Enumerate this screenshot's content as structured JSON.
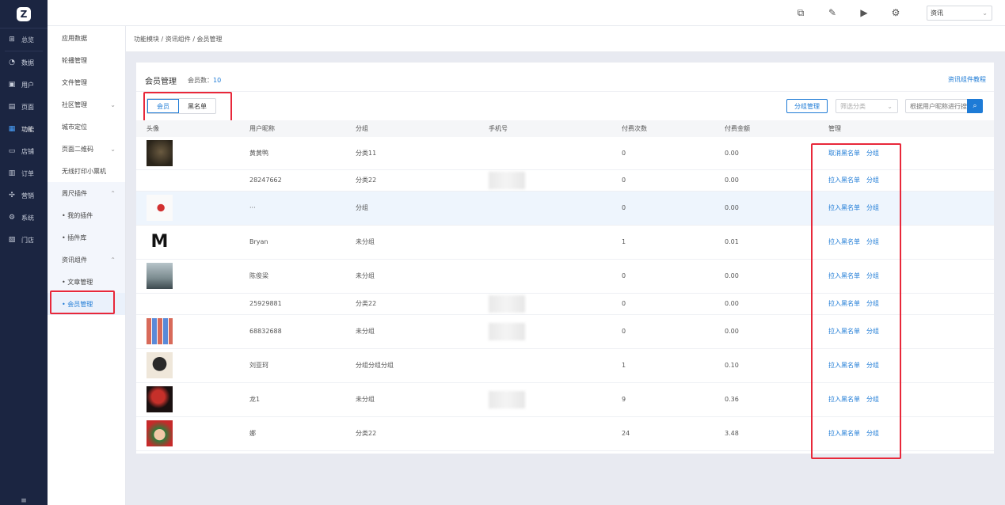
{
  "nav": {
    "logo": "Z",
    "items": [
      {
        "label": "总览",
        "icon": "grid-icon",
        "glyph": "⊞"
      },
      {
        "label": "数据",
        "icon": "pie-chart-icon",
        "glyph": "◔"
      },
      {
        "label": "用户",
        "icon": "user-card-icon",
        "glyph": "▣"
      },
      {
        "label": "页面",
        "icon": "page-icon",
        "glyph": "▤"
      },
      {
        "label": "功能",
        "icon": "function-icon",
        "glyph": "▦"
      },
      {
        "label": "店铺",
        "icon": "store-icon",
        "glyph": "▭"
      },
      {
        "label": "订单",
        "icon": "order-icon",
        "glyph": "▥"
      },
      {
        "label": "营销",
        "icon": "marketing-icon",
        "glyph": "✣"
      },
      {
        "label": "系统",
        "icon": "settings-icon",
        "glyph": "⚙"
      },
      {
        "label": "门店",
        "icon": "shop-icon",
        "glyph": "▧"
      }
    ],
    "bottom_glyph": "≡"
  },
  "sub": {
    "items": [
      {
        "label": "应用数据"
      },
      {
        "label": "轮播管理"
      },
      {
        "label": "文件管理"
      },
      {
        "label": "社区管理",
        "chev": "⌄"
      },
      {
        "label": "城市定位"
      },
      {
        "label": "页面二维码",
        "chev": "⌄"
      },
      {
        "label": "无线打印小票机"
      }
    ],
    "group1": {
      "label": "周尺插件",
      "chev": "⌃",
      "children": [
        "• 我的插件",
        "• 插件库"
      ]
    },
    "group2": {
      "label": "资讯组件",
      "chev": "⌃",
      "children": [
        "• 文章管理",
        "• 会员管理"
      ]
    }
  },
  "topbar": {
    "icons": [
      {
        "name": "external-link-icon",
        "glyph": "⧉"
      },
      {
        "name": "edit-icon",
        "glyph": "✎"
      },
      {
        "name": "play-icon",
        "glyph": "▶"
      },
      {
        "name": "gear-icon",
        "glyph": "⚙"
      }
    ],
    "select_value": "资讯",
    "select_caret": "⌄"
  },
  "breadcrumb": "功能模块 / 资讯组件 / 会员管理",
  "card": {
    "title": "会员管理",
    "count_label": "会员数：",
    "count_value": "10",
    "tutorial": "资讯组件教程",
    "tabs": [
      "会员",
      "黑名单"
    ],
    "group_btn": "分组管理",
    "filter_placeholder": "筛选分类",
    "filter_caret": "⌄",
    "search_placeholder": "根据用户昵称进行搜索",
    "search_glyph": "⌕"
  },
  "table": {
    "headers": [
      "头像",
      "用户昵称",
      "分组",
      "手机号",
      "付费次数",
      "付费金额",
      "管理"
    ],
    "rows": [
      {
        "nick": "黄黄鸭",
        "group": "分类11",
        "count": "0",
        "amount": "0.00",
        "op1": "取消黑名单",
        "op2": "分组",
        "avatar": "dark"
      },
      {
        "nick": "28247662",
        "group": "分类22",
        "count": "0",
        "amount": "0.00",
        "op1": "拉入黑名单",
        "op2": "分组",
        "avatar": "none"
      },
      {
        "nick": "···",
        "group": "分组",
        "count": "0",
        "amount": "0.00",
        "op1": "拉入黑名单",
        "op2": "分组",
        "avatar": "bird"
      },
      {
        "nick": "Bryan",
        "group": "未分组",
        "count": "1",
        "amount": "0.01",
        "op1": "拉入黑名单",
        "op2": "分组",
        "avatar": "m"
      },
      {
        "nick": "陈俊梁",
        "group": "未分组",
        "count": "0",
        "amount": "0.00",
        "op1": "拉入黑名单",
        "op2": "分组",
        "avatar": "sea"
      },
      {
        "nick": "25929881",
        "group": "分类22",
        "count": "0",
        "amount": "0.00",
        "op1": "拉入黑名单",
        "op2": "分组",
        "avatar": "none"
      },
      {
        "nick": "68832688",
        "group": "未分组",
        "count": "0",
        "amount": "0.00",
        "op1": "拉入黑名单",
        "op2": "分组",
        "avatar": "tiles"
      },
      {
        "nick": "刘亚珂",
        "group": "分组分组分组",
        "count": "1",
        "amount": "0.10",
        "op1": "拉入黑名单",
        "op2": "分组",
        "avatar": "girl"
      },
      {
        "nick": "龙1",
        "group": "未分组",
        "count": "9",
        "amount": "0.36",
        "op1": "拉入黑名单",
        "op2": "分组",
        "avatar": "red"
      },
      {
        "nick": "娜",
        "group": "分类22",
        "count": "24",
        "amount": "3.48",
        "op1": "拉入黑名单",
        "op2": "分组",
        "avatar": "xmas"
      }
    ]
  }
}
